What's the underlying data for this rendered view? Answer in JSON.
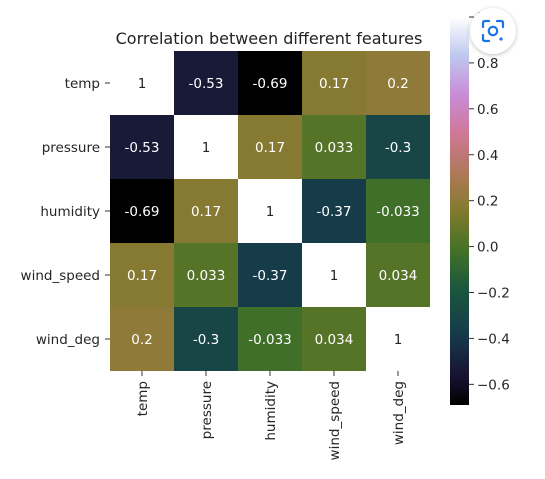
{
  "chart_data": {
    "type": "heatmap",
    "title": "Correlation between different features",
    "rows": [
      "temp",
      "pressure",
      "humidity",
      "wind_speed",
      "wind_deg"
    ],
    "columns": [
      "temp",
      "pressure",
      "humidity",
      "wind_speed",
      "wind_deg"
    ],
    "values": [
      [
        1,
        -0.53,
        -0.69,
        0.17,
        0.2
      ],
      [
        -0.53,
        1,
        0.17,
        0.033,
        -0.3
      ],
      [
        -0.69,
        0.17,
        1,
        -0.37,
        -0.033
      ],
      [
        0.17,
        0.033,
        -0.37,
        1,
        0.034
      ],
      [
        0.2,
        -0.3,
        -0.033,
        0.034,
        1
      ]
    ],
    "cell_labels": [
      [
        "1",
        "-0.53",
        "-0.69",
        "0.17",
        "0.2"
      ],
      [
        "-0.53",
        "1",
        "0.17",
        "0.033",
        "-0.3"
      ],
      [
        "-0.69",
        "0.17",
        "1",
        "-0.37",
        "-0.033"
      ],
      [
        "0.17",
        "0.033",
        "-0.37",
        "1",
        "0.034"
      ],
      [
        "0.2",
        "-0.3",
        "-0.033",
        "0.034",
        "1"
      ]
    ],
    "colorbar": {
      "range": [
        -0.69,
        1
      ],
      "ticks": [
        1.0,
        0.8,
        0.6,
        0.4,
        0.2,
        0.0,
        -0.2,
        -0.4,
        -0.6
      ],
      "tick_labels": [
        "1.0",
        "0.8",
        "0.6",
        "0.4",
        "0.2",
        "0.0",
        "−0.2",
        "−0.4",
        "−0.6"
      ]
    },
    "colormap": "cubehelix",
    "grid": false,
    "legend": "right colorbar"
  },
  "overlay": {
    "icon": "lens-icon"
  }
}
